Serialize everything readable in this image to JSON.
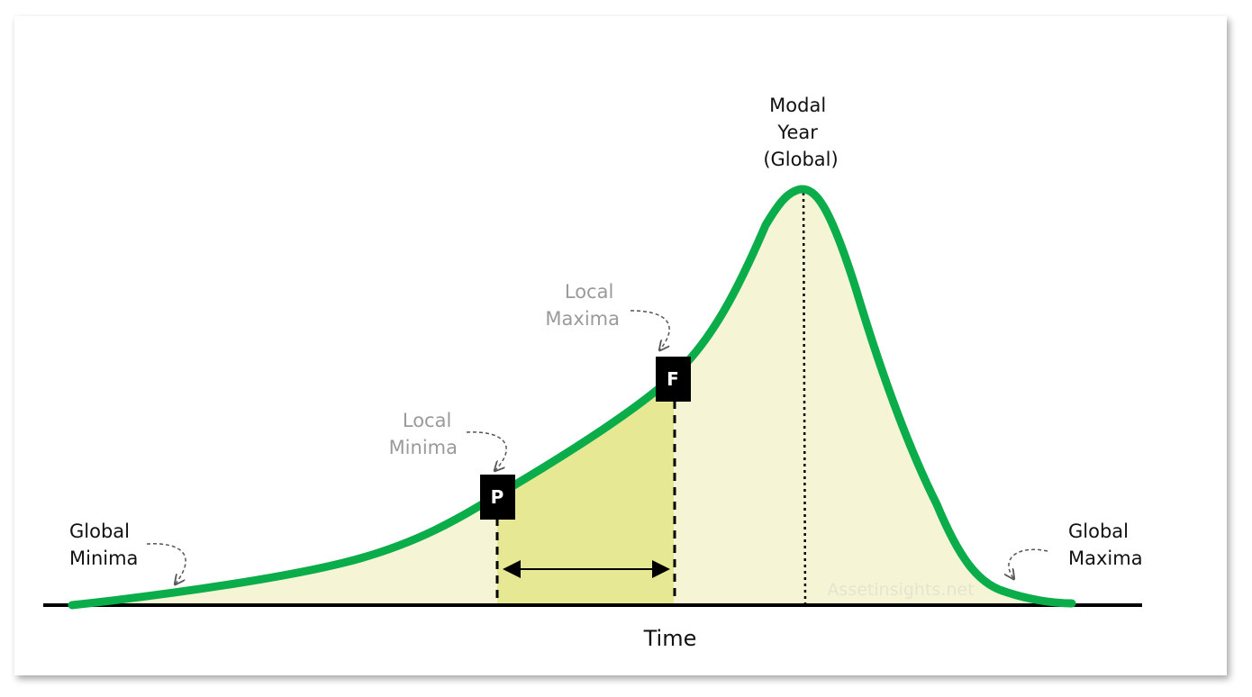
{
  "annotations": {
    "modal": {
      "lines": [
        "Modal",
        "Year",
        "(Global)"
      ]
    },
    "local_maxima": {
      "lines": [
        "Local",
        "Maxima"
      ]
    },
    "local_minima": {
      "lines": [
        "Local",
        "Minima"
      ]
    },
    "global_minima": {
      "lines": [
        "Global",
        "Minima"
      ]
    },
    "global_maxima": {
      "lines": [
        "Global",
        "Maxima"
      ]
    }
  },
  "markers": {
    "p": "P",
    "f": "F"
  },
  "axis_label": "Time",
  "watermark": "Assetinsights.net"
}
